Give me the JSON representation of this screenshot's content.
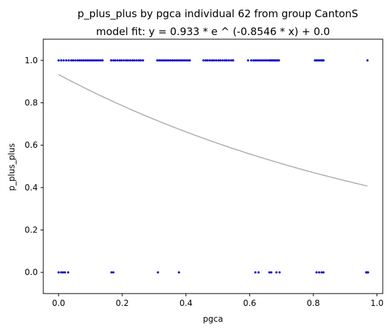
{
  "chart_data": {
    "type": "scatter",
    "title": "p_plus_plus by pgca individual 62 from group CantonS",
    "subtitle": "model fit: y = 0.933 * e ^ (-0.8546 * x) + 0.0",
    "xlabel": "pgca",
    "ylabel": "p_plus_plus",
    "xlim": [
      -0.048,
      1.018
    ],
    "ylim": [
      -0.1,
      1.1
    ],
    "xticks": [
      0.0,
      0.2,
      0.4,
      0.6,
      0.8,
      1.0
    ],
    "xtick_labels": [
      "0.0",
      "0.2",
      "0.4",
      "0.6",
      "0.8",
      "1.0"
    ],
    "yticks": [
      0.0,
      0.2,
      0.4,
      0.6,
      0.8,
      1.0
    ],
    "ytick_labels": [
      "0.0",
      "0.2",
      "0.4",
      "0.6",
      "0.8",
      "1.0"
    ],
    "grid": false,
    "point_color": "#0000cc",
    "fit_color": "#b0b0b0",
    "fit_model": {
      "a": 0.933,
      "b": -0.8546,
      "c": 0.0,
      "x_range": [
        0.0,
        0.97
      ]
    },
    "series": [
      {
        "values_at_y1": [
          0.0,
          0.008,
          0.016,
          0.024,
          0.032,
          0.04,
          0.046,
          0.053,
          0.06,
          0.066,
          0.072,
          0.078,
          0.084,
          0.09,
          0.096,
          0.102,
          0.108,
          0.114,
          0.12,
          0.126,
          0.132,
          0.138,
          0.165,
          0.172,
          0.178,
          0.185,
          0.192,
          0.198,
          0.205,
          0.212,
          0.218,
          0.225,
          0.232,
          0.238,
          0.245,
          0.252,
          0.258,
          0.265,
          0.31,
          0.316,
          0.322,
          0.328,
          0.334,
          0.34,
          0.346,
          0.352,
          0.358,
          0.364,
          0.37,
          0.376,
          0.382,
          0.388,
          0.394,
          0.4,
          0.406,
          0.412,
          0.455,
          0.462,
          0.468,
          0.475,
          0.482,
          0.488,
          0.495,
          0.502,
          0.508,
          0.515,
          0.522,
          0.528,
          0.535,
          0.542,
          0.548,
          0.595,
          0.605,
          0.612,
          0.618,
          0.624,
          0.63,
          0.636,
          0.642,
          0.648,
          0.654,
          0.66,
          0.664,
          0.668,
          0.672,
          0.676,
          0.68,
          0.684,
          0.688,
          0.692,
          0.805,
          0.81,
          0.815,
          0.82,
          0.825,
          0.828,
          0.832,
          0.97
        ],
        "values_at_y0": [
          0.0,
          0.008,
          0.014,
          0.02,
          0.03,
          0.166,
          0.172,
          0.312,
          0.378,
          0.618,
          0.628,
          0.662,
          0.668,
          0.684,
          0.694,
          0.81,
          0.818,
          0.826,
          0.832,
          0.966,
          0.968,
          0.97,
          0.972
        ]
      }
    ]
  }
}
